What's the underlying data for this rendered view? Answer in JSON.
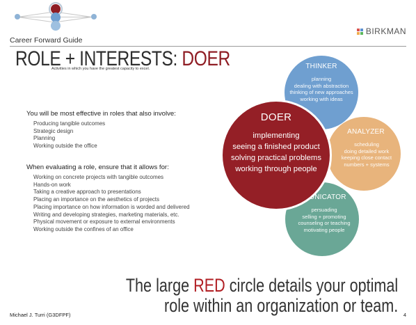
{
  "header": {
    "guide_title": "Career Forward Guide",
    "logo_text": "BIRKMAN",
    "logo_small": "",
    "colors": {
      "nav_dark_red": "#8f1d24",
      "nav_blue": "#8fb3d6",
      "nav_light": "#b9cfe3"
    }
  },
  "title": {
    "prefix": "ROLE + INTERESTS: ",
    "highlight": "DOER",
    "subtitle": "Activities in which you have the greatest capacity to excel."
  },
  "section1": {
    "heading": "You will be most effective in roles that also involve:",
    "items": [
      "Producing tangible outcomes",
      "Strategic design",
      "Planning",
      "Working outside the office"
    ]
  },
  "section2": {
    "heading": "When evaluating a role, ensure that it allows for:",
    "items": [
      "Working on concrete projects with tangible outcomes",
      "Hands-on work",
      "Taking a creative approach to presentations",
      "Placing an importance on the aesthetics of projects",
      "Placing importance on how information is worded and delivered",
      "Writing and developing strategies, marketing materials, etc.",
      "Physical movement or exposure to external environments",
      "Working outside the confines of an office"
    ]
  },
  "circles": {
    "thinker": {
      "title": "THINKER",
      "items": [
        "planning",
        "dealing with abstraction",
        "thinking of new approaches",
        "working with ideas"
      ],
      "color": "#6f9fd0"
    },
    "analyzer": {
      "title": "ANALYZER",
      "items": [
        "scheduling",
        "doing detailed work",
        "keeping close contact",
        "numbers + systems"
      ],
      "color": "#e8b47c"
    },
    "communicator": {
      "title": "COMMUNICATOR",
      "visible_title": "MUNICATOR",
      "items": [
        "persuading",
        "selling + promoting",
        "counseling or teaching",
        "motivating people"
      ],
      "color": "#6aa796"
    },
    "doer": {
      "title": "DOER",
      "items": [
        "implementing",
        "seeing a finished product",
        "solving practical problems",
        "working through people"
      ],
      "color": "#941f26"
    }
  },
  "tagline": {
    "line1_pre": "The large ",
    "line1_red": "RED",
    "line1_post": " circle details your optimal",
    "line2": "role within an organization or team."
  },
  "footer": {
    "author": "Michael J. Turri (G3DFPF)",
    "page": "4"
  }
}
